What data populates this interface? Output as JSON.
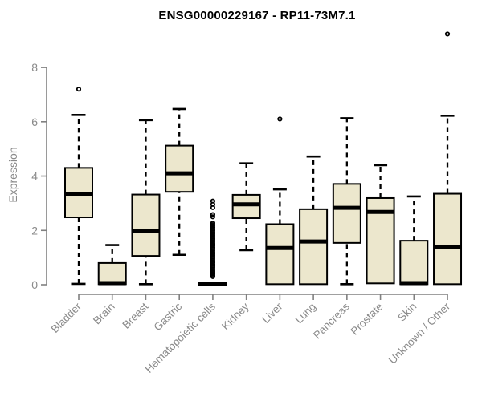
{
  "chart_data": {
    "type": "boxplot",
    "title": "ENSG00000229167 - RP11-73M7.1",
    "xlabel": "",
    "ylabel": "Expression",
    "ylim": [
      0,
      8
    ],
    "yticks": [
      0,
      2,
      4,
      6,
      8
    ],
    "grid": false,
    "legend": "none",
    "colors": {
      "box_fill": "#ece7cd",
      "box_stroke": "#000000",
      "median": "#000000",
      "whisker": "#000000",
      "axis": "#818181",
      "tick_label": "#8a8a8a",
      "title": "#000000",
      "background": "#ffffff"
    },
    "categories": [
      "Bladder",
      "Brain",
      "Breast",
      "Gastric",
      "Hematopoietic cells",
      "Kidney",
      "Liver",
      "Lung",
      "Pancreas",
      "Prostate",
      "Skin",
      "Unknown / Other"
    ],
    "boxes": [
      {
        "category": "Bladder",
        "whisker_low": 0.03,
        "q1": 2.48,
        "median": 3.35,
        "q3": 4.3,
        "whisker_high": 6.25,
        "outliers": [
          7.2
        ]
      },
      {
        "category": "Brain",
        "whisker_low": 0,
        "q1": 0.02,
        "median": 0.06,
        "q3": 0.8,
        "whisker_high": 1.46,
        "outliers": []
      },
      {
        "category": "Breast",
        "whisker_low": 0.02,
        "q1": 1.06,
        "median": 1.98,
        "q3": 3.32,
        "whisker_high": 6.06,
        "outliers": []
      },
      {
        "category": "Gastric",
        "whisker_low": 1.1,
        "q1": 3.42,
        "median": 4.1,
        "q3": 5.12,
        "whisker_high": 6.47,
        "outliers": []
      },
      {
        "category": "Hematopoietic cells",
        "whisker_low": 0,
        "q1": 0,
        "median": 0.03,
        "q3": 0.07,
        "whisker_high": 0.07,
        "outliers": [
          3.08,
          2.96,
          2.84,
          2.58,
          2.5,
          2.27,
          2.21,
          2.16,
          2.1,
          2.04,
          1.99,
          1.93,
          1.87,
          1.82,
          1.76,
          1.7,
          1.65,
          1.59,
          1.53,
          1.48,
          1.42,
          1.36,
          1.31,
          1.25,
          1.19,
          1.14,
          1.08,
          1.02,
          0.97,
          0.91,
          0.85,
          0.8,
          0.74,
          0.68,
          0.63,
          0.57,
          0.51,
          0.46,
          0.4,
          0.35,
          0.3
        ]
      },
      {
        "category": "Kidney",
        "whisker_low": 1.27,
        "q1": 2.45,
        "median": 2.96,
        "q3": 3.31,
        "whisker_high": 4.47,
        "outliers": []
      },
      {
        "category": "Liver",
        "whisker_low": 0,
        "q1": 0.02,
        "median": 1.35,
        "q3": 2.23,
        "whisker_high": 3.51,
        "outliers": [
          6.1
        ]
      },
      {
        "category": "Lung",
        "whisker_low": 0,
        "q1": 0.02,
        "median": 1.59,
        "q3": 2.78,
        "whisker_high": 4.72,
        "outliers": []
      },
      {
        "category": "Pancreas",
        "whisker_low": 0.02,
        "q1": 1.54,
        "median": 2.83,
        "q3": 3.71,
        "whisker_high": 6.13,
        "outliers": []
      },
      {
        "category": "Prostate",
        "whisker_low": 0,
        "q1": 0.05,
        "median": 2.68,
        "q3": 3.19,
        "whisker_high": 4.4,
        "outliers": []
      },
      {
        "category": "Skin",
        "whisker_low": 0,
        "q1": 0.02,
        "median": 0.06,
        "q3": 1.62,
        "whisker_high": 3.25,
        "outliers": []
      },
      {
        "category": "Unknown / Other",
        "whisker_low": 0,
        "q1": 0.02,
        "median": 1.38,
        "q3": 3.35,
        "whisker_high": 6.22,
        "outliers": [
          9.23
        ]
      }
    ]
  }
}
